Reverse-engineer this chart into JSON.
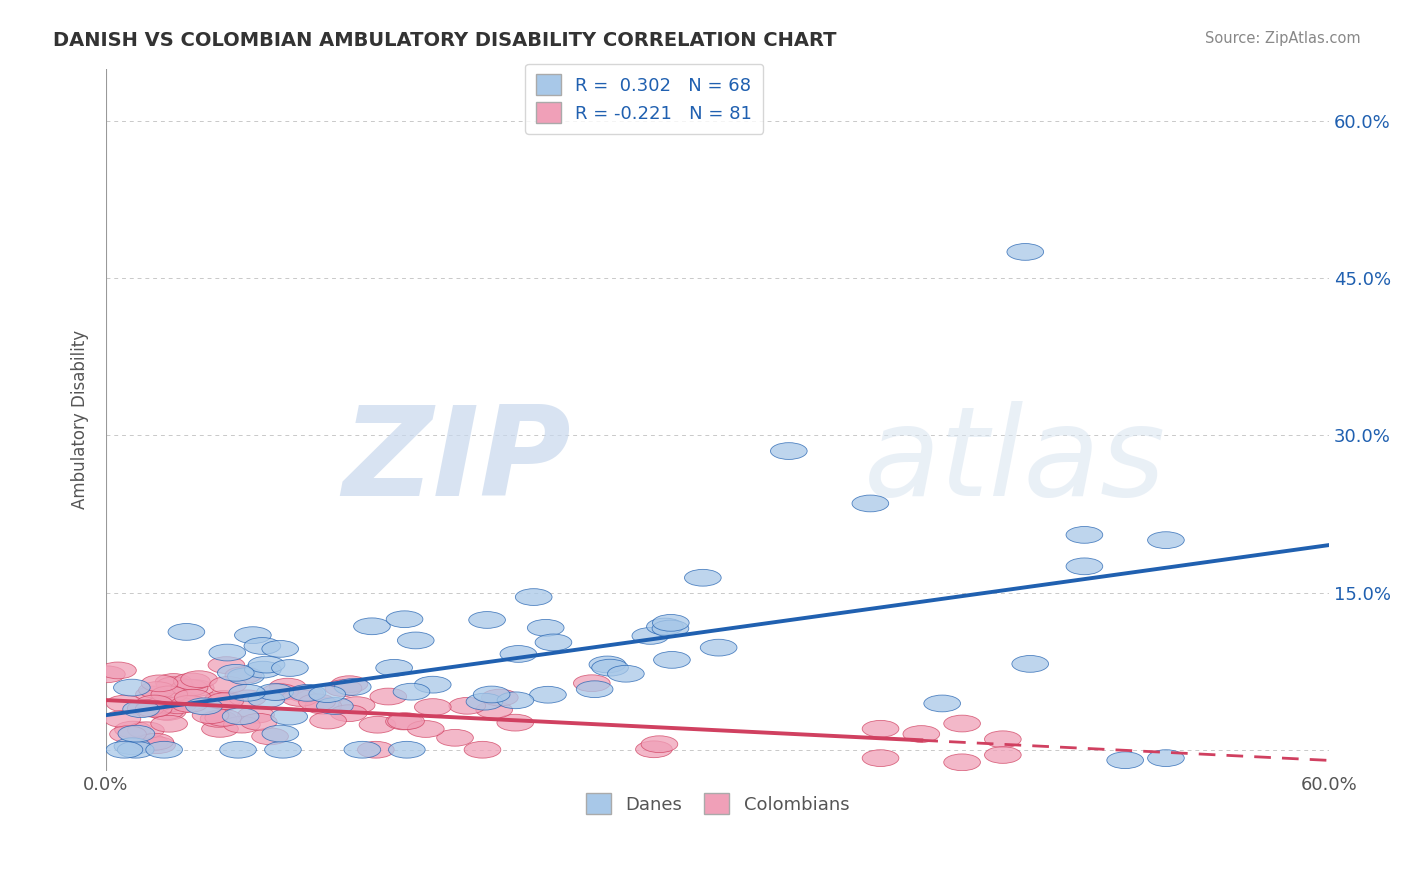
{
  "title": "DANISH VS COLOMBIAN AMBULATORY DISABILITY CORRELATION CHART",
  "source": "Source: ZipAtlas.com",
  "ylabel": "Ambulatory Disability",
  "danes_R": 0.302,
  "colombians_R": -0.221,
  "danes_N": 68,
  "colombians_N": 81,
  "danes_color": "#a8c8e8",
  "danes_line_color": "#2060b0",
  "colombians_color": "#f0a0b8",
  "colombians_line_color": "#d04060",
  "background_color": "#ffffff",
  "grid_color": "#bbbbbb",
  "title_color": "#333333",
  "watermark_zip": "ZIP",
  "watermark_atlas": "atlas",
  "xlim": [
    0.0,
    0.6
  ],
  "ylim": [
    -0.02,
    0.65
  ],
  "danes_seed": 7,
  "colombians_seed": 13
}
